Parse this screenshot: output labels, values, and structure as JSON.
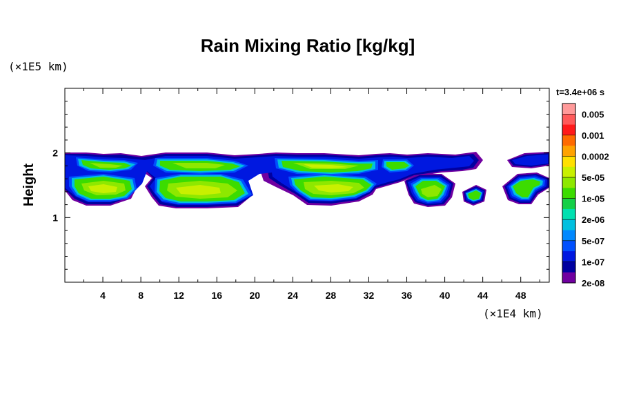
{
  "chart_data": {
    "type": "heatmap",
    "title": "Rain Mixing Ratio [kg/kg]",
    "ylabel": "Height",
    "x_unit_label": "(×1E4 km)",
    "y_unit_label": "(×1E5 km)",
    "time_label": "t=3.4e+06 s",
    "xlim": [
      0,
      51
    ],
    "ylim": [
      0,
      3
    ],
    "x_ticks": [
      4,
      8,
      12,
      16,
      20,
      24,
      28,
      32,
      36,
      40,
      44,
      48
    ],
    "y_ticks": [
      1,
      2
    ],
    "colorbar": {
      "levels": [
        "0.005",
        "0.001",
        "0.0002",
        "5e-05",
        "1e-05",
        "2e-06",
        "5e-07",
        "1e-07",
        "2e-08"
      ],
      "colors": [
        "#ff9a9a",
        "#ff5a5a",
        "#ff1a1a",
        "#ff6a00",
        "#ffa200",
        "#ffe000",
        "#c8f000",
        "#8ee800",
        "#3cdc00",
        "#14d048",
        "#00e0b0",
        "#00c0e0",
        "#0088ff",
        "#0050ff",
        "#0018e0",
        "#0000a0",
        "#7000a0"
      ]
    },
    "regions": [
      {
        "x": [
          0,
          51
        ],
        "y": [
          1.2,
          2.0
        ],
        "level": "2e-08"
      },
      {
        "x": [
          2,
          8
        ],
        "y": [
          1.3,
          1.55
        ],
        "level": "1e-05"
      },
      {
        "x": [
          2.5,
          7
        ],
        "y": [
          1.75,
          1.88
        ],
        "level": "5e-05"
      },
      {
        "x": [
          10,
          19
        ],
        "y": [
          1.72,
          1.85
        ],
        "level": "5e-05"
      },
      {
        "x": [
          10,
          18
        ],
        "y": [
          1.25,
          1.65
        ],
        "level": "1e-05"
      },
      {
        "x": [
          24,
          32
        ],
        "y": [
          1.72,
          1.85
        ],
        "level": "5e-05"
      },
      {
        "x": [
          24,
          32
        ],
        "y": [
          1.25,
          1.6
        ],
        "level": "1e-05"
      },
      {
        "x": [
          37,
          40
        ],
        "y": [
          1.3,
          1.5
        ],
        "level": "5e-05"
      },
      {
        "x": [
          42.5,
          44.5
        ],
        "y": [
          1.33,
          1.45
        ],
        "level": "1e-05"
      }
    ]
  }
}
